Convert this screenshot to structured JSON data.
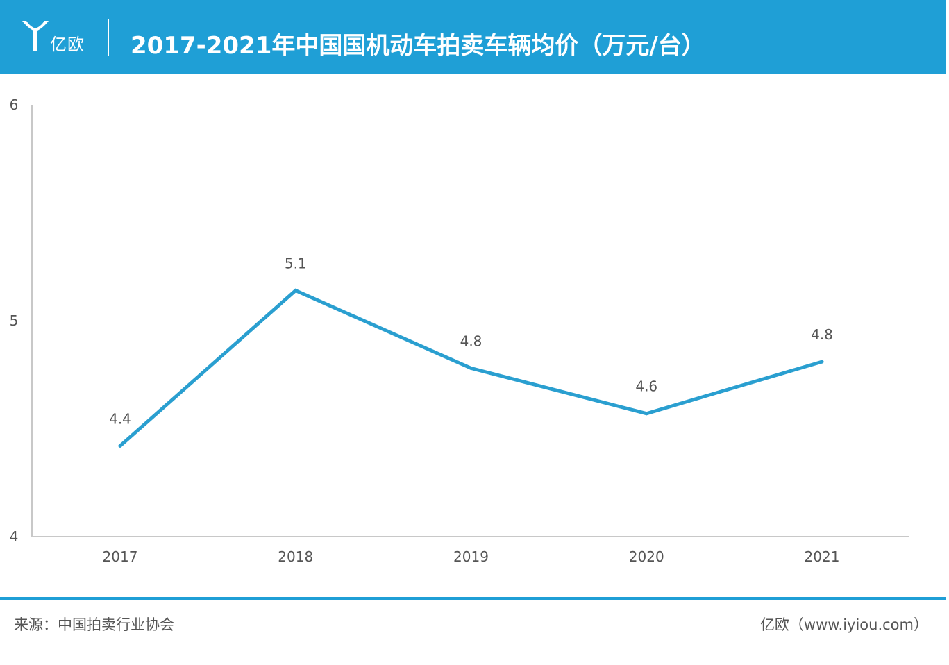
{
  "header": {
    "logo_text": "亿欧",
    "title": "2017-2021年中国国机动车拍卖车辆均价（万元/台）"
  },
  "colors": {
    "brand": "#1f9fd6",
    "line": "#2a9fd0",
    "axis": "#c8c8c8",
    "label": "#555555"
  },
  "chart_data": {
    "type": "line",
    "title": "2017-2021年中国国机动车拍卖车辆均价（万元/台）",
    "categories": [
      "2017",
      "2018",
      "2019",
      "2020",
      "2021"
    ],
    "series": [
      {
        "values": [
          4.42,
          5.14,
          4.78,
          4.57,
          4.81
        ],
        "labels": [
          "4.4",
          "5.1",
          "4.8",
          "4.6",
          "4.8"
        ]
      }
    ],
    "ylim": [
      4,
      6
    ],
    "yticks": [
      "4",
      "5",
      "6"
    ],
    "xlabel": "",
    "ylabel": "",
    "grid": false,
    "legend": "none"
  },
  "footer": {
    "source": "来源：中国拍卖行业协会",
    "credit": "亿欧（www.iyiou.com）"
  }
}
